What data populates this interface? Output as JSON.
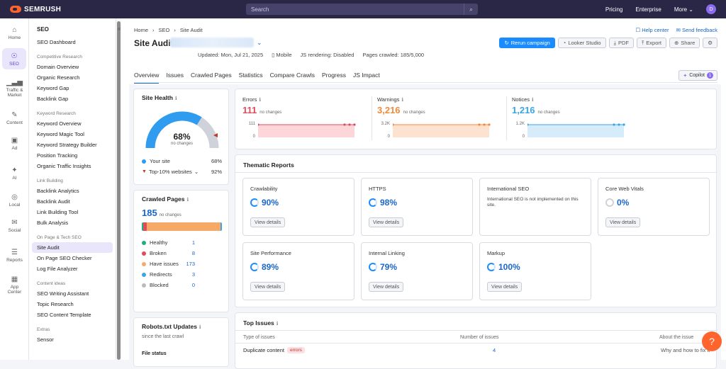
{
  "topbar": {
    "logo": "SEMRUSH",
    "search_placeholder": "Search",
    "pricing": "Pricing",
    "enterprise": "Enterprise",
    "more": "More",
    "avatar": "D"
  },
  "rail": [
    {
      "label": "Home",
      "icon": "home-icon"
    },
    {
      "label": "SEO",
      "icon": "seo-icon"
    },
    {
      "label": "Traffic & Market",
      "icon": "chart-icon"
    },
    {
      "label": "Content",
      "icon": "pen-icon"
    },
    {
      "label": "Ad",
      "icon": "ad-icon"
    },
    {
      "label": "AI",
      "icon": "sparkle-icon"
    },
    {
      "label": "Local",
      "icon": "pin-icon"
    },
    {
      "label": "Social",
      "icon": "social-icon"
    },
    {
      "label": "Reports",
      "icon": "report-icon"
    },
    {
      "label": "App Center",
      "icon": "apps-icon"
    }
  ],
  "sidebar": {
    "header": "SEO",
    "dashboard": "SEO Dashboard",
    "groups": [
      {
        "title": "Competitive Research",
        "items": [
          "Domain Overview",
          "Organic Research",
          "Keyword Gap",
          "Backlink Gap"
        ]
      },
      {
        "title": "Keyword Research",
        "items": [
          "Keyword Overview",
          "Keyword Magic Tool",
          "Keyword Strategy Builder",
          "Position Tracking",
          "Organic Traffic Insights"
        ]
      },
      {
        "title": "Link Building",
        "items": [
          "Backlink Analytics",
          "Backlink Audit",
          "Link Building Tool",
          "Bulk Analysis"
        ]
      },
      {
        "title": "On Page & Tech SEO",
        "items": [
          "Site Audit",
          "On Page SEO Checker",
          "Log File Analyzer"
        ]
      },
      {
        "title": "Content ideas",
        "items": [
          "SEO Writing Assistant",
          "Topic Research",
          "SEO Content Template"
        ]
      },
      {
        "title": "Extras",
        "items": [
          "Sensor"
        ]
      }
    ]
  },
  "header": {
    "crumbs": [
      "Home",
      "SEO",
      "Site Audit"
    ],
    "help": "Help center",
    "feedback": "Send feedback",
    "title": "Site Audit:",
    "updated": "Updated: Mon, Jul 21, 2025",
    "device": "Mobile",
    "js": "JS rendering: Disabled",
    "crawled": "Pages crawled: 185/5,000",
    "rerun": "Rerun campaign",
    "looker": "Looker Studio",
    "pdf": "PDF",
    "export": "Export",
    "share": "Share"
  },
  "tabs": [
    "Overview",
    "Issues",
    "Crawled Pages",
    "Statistics",
    "Compare Crawls",
    "Progress",
    "JS Impact"
  ],
  "copilot": {
    "label": "Copilot",
    "count": "1"
  },
  "site_health": {
    "title": "Site Health",
    "score": "68%",
    "sub": "no changes",
    "your_site": "Your site",
    "your_val": "68%",
    "top": "Top-10% websites",
    "top_val": "92%"
  },
  "crawled_pages": {
    "title": "Crawled Pages",
    "count": "185",
    "sub": "no changes",
    "rows": [
      {
        "label": "Healthy",
        "value": "1",
        "color": "#1fae83"
      },
      {
        "label": "Broken",
        "value": "8",
        "color": "#e14c5c"
      },
      {
        "label": "Have issues",
        "value": "173",
        "color": "#f7a96a"
      },
      {
        "label": "Redirects",
        "value": "3",
        "color": "#3ba5e8"
      },
      {
        "label": "Blocked",
        "value": "0",
        "color": "#bbbbbb"
      }
    ]
  },
  "metrics": [
    {
      "name": "Errors",
      "value": "111",
      "sub": "no changes",
      "ymax": "111",
      "ymin": "0",
      "color": "#e14c5c",
      "fill": "#fdd6da"
    },
    {
      "name": "Warnings",
      "value": "3,216",
      "sub": "no changes",
      "ymax": "3.2K",
      "ymin": "0",
      "color": "#f08a3c",
      "fill": "#fde2cf"
    },
    {
      "name": "Notices",
      "value": "1,216",
      "sub": "no changes",
      "ymax": "1.2K",
      "ymin": "0",
      "color": "#3ba5e8",
      "fill": "#d6ecfb"
    }
  ],
  "thematic": {
    "title": "Thematic Reports",
    "view": "View details",
    "cards": [
      {
        "name": "Crawlability",
        "pct": "90%"
      },
      {
        "name": "HTTPS",
        "pct": "98%"
      },
      {
        "name": "International SEO",
        "pct": "",
        "note": "International SEO is not implemented on this site."
      },
      {
        "name": "Core Web Vitals",
        "pct": "0%"
      },
      {
        "name": "Site Performance",
        "pct": "89%"
      },
      {
        "name": "Internal Linking",
        "pct": "79%"
      },
      {
        "name": "Markup",
        "pct": "100%"
      }
    ]
  },
  "robots": {
    "title": "Robots.txt Updates",
    "sub": "since the last crawl",
    "file": "File status"
  },
  "top_issues": {
    "title": "Top Issues",
    "col1": "Type of issues",
    "col2": "Number of issues",
    "col3": "About the issue",
    "row_name": "Duplicate content",
    "row_tag": "errors",
    "row_count": "4",
    "row_about": "Why and how to fix it"
  }
}
